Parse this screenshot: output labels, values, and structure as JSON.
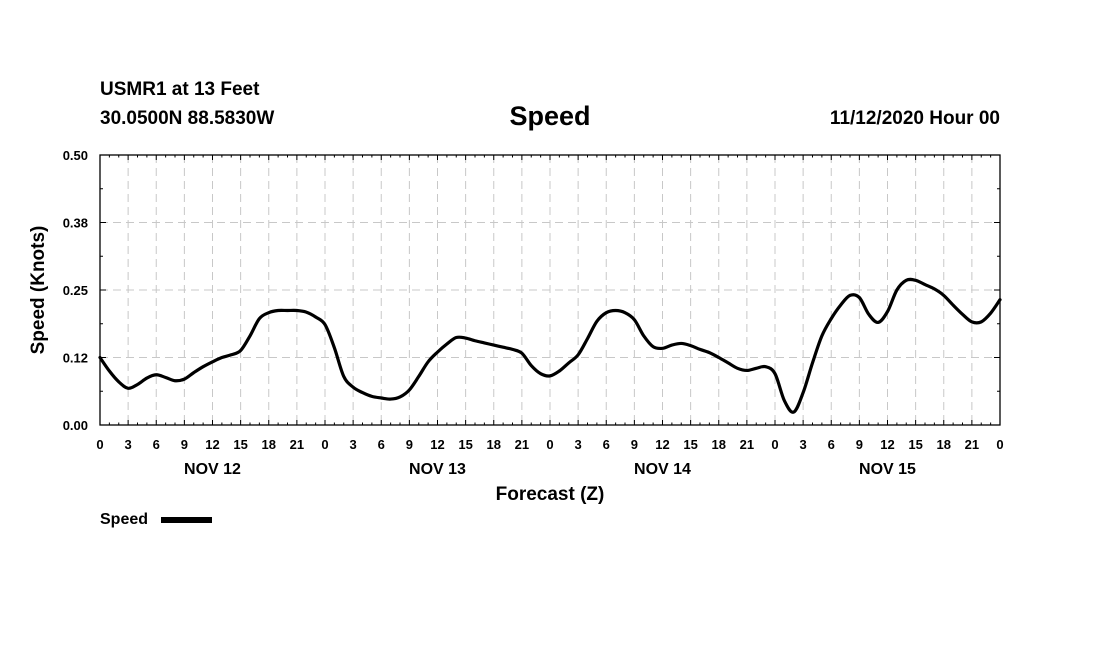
{
  "header": {
    "station": "USMR1 at 13 Feet",
    "coords": "30.0500N 88.5830W",
    "title": "Speed",
    "datetime": "11/12/2020 Hour 00"
  },
  "legend": {
    "label": "Speed"
  },
  "chart_data": {
    "type": "line",
    "title": "Speed",
    "xlabel": "Forecast (Z)",
    "ylabel": "Speed (Knots)",
    "ylim": [
      0,
      0.5
    ],
    "y_ticks": [
      "0.00",
      "0.12",
      "0.25",
      "0.38",
      "0.50"
    ],
    "y_tick_values": [
      0,
      0.125,
      0.25,
      0.375,
      0.5
    ],
    "x_unit": "hours since 11/12/2020 Hour 00",
    "xlim": [
      0,
      96
    ],
    "x_tick_hours": [
      0,
      3,
      6,
      9,
      12,
      15,
      18,
      21,
      24,
      27,
      30,
      33,
      36,
      39,
      42,
      45,
      48,
      51,
      54,
      57,
      60,
      63,
      66,
      69,
      72,
      75,
      78,
      81,
      84,
      87,
      90,
      93,
      96
    ],
    "x_tick_labels": [
      "0",
      "3",
      "6",
      "9",
      "12",
      "15",
      "18",
      "21",
      "0",
      "3",
      "6",
      "9",
      "12",
      "15",
      "18",
      "21",
      "0",
      "3",
      "6",
      "9",
      "12",
      "15",
      "18",
      "21",
      "0",
      "3",
      "6",
      "9",
      "12",
      "15",
      "18",
      "21",
      "0"
    ],
    "day_labels": [
      {
        "label": "NOV 12",
        "hour": 12
      },
      {
        "label": "NOV 13",
        "hour": 36
      },
      {
        "label": "NOV 14",
        "hour": 60
      },
      {
        "label": "NOV 15",
        "hour": 84
      }
    ],
    "grid": true,
    "legend_position": "bottom-left",
    "series": [
      {
        "name": "Speed",
        "color": "#000000",
        "points": [
          [
            0,
            0.125
          ],
          [
            1,
            0.1
          ],
          [
            2,
            0.08
          ],
          [
            3,
            0.068
          ],
          [
            4,
            0.075
          ],
          [
            5,
            0.087
          ],
          [
            6,
            0.093
          ],
          [
            7,
            0.088
          ],
          [
            8,
            0.082
          ],
          [
            9,
            0.085
          ],
          [
            10,
            0.097
          ],
          [
            11,
            0.108
          ],
          [
            12,
            0.117
          ],
          [
            13,
            0.125
          ],
          [
            14,
            0.13
          ],
          [
            15,
            0.138
          ],
          [
            16,
            0.165
          ],
          [
            17,
            0.197
          ],
          [
            18,
            0.208
          ],
          [
            19,
            0.212
          ],
          [
            20,
            0.212
          ],
          [
            21,
            0.212
          ],
          [
            22,
            0.209
          ],
          [
            23,
            0.2
          ],
          [
            24,
            0.186
          ],
          [
            25,
            0.143
          ],
          [
            26,
            0.09
          ],
          [
            27,
            0.07
          ],
          [
            28,
            0.06
          ],
          [
            29,
            0.053
          ],
          [
            30,
            0.05
          ],
          [
            31,
            0.048
          ],
          [
            32,
            0.052
          ],
          [
            33,
            0.065
          ],
          [
            34,
            0.09
          ],
          [
            35,
            0.117
          ],
          [
            36,
            0.135
          ],
          [
            37,
            0.15
          ],
          [
            38,
            0.162
          ],
          [
            39,
            0.161
          ],
          [
            40,
            0.156
          ],
          [
            41,
            0.152
          ],
          [
            42,
            0.148
          ],
          [
            43,
            0.144
          ],
          [
            44,
            0.14
          ],
          [
            45,
            0.133
          ],
          [
            46,
            0.11
          ],
          [
            47,
            0.095
          ],
          [
            48,
            0.091
          ],
          [
            49,
            0.1
          ],
          [
            50,
            0.115
          ],
          [
            51,
            0.13
          ],
          [
            52,
            0.16
          ],
          [
            53,
            0.192
          ],
          [
            54,
            0.208
          ],
          [
            55,
            0.212
          ],
          [
            56,
            0.208
          ],
          [
            57,
            0.195
          ],
          [
            58,
            0.165
          ],
          [
            59,
            0.145
          ],
          [
            60,
            0.142
          ],
          [
            61,
            0.148
          ],
          [
            62,
            0.151
          ],
          [
            63,
            0.147
          ],
          [
            64,
            0.14
          ],
          [
            65,
            0.134
          ],
          [
            66,
            0.125
          ],
          [
            67,
            0.115
          ],
          [
            68,
            0.105
          ],
          [
            69,
            0.101
          ],
          [
            70,
            0.105
          ],
          [
            71,
            0.108
          ],
          [
            72,
            0.095
          ],
          [
            73,
            0.045
          ],
          [
            74,
            0.024
          ],
          [
            75,
            0.06
          ],
          [
            76,
            0.115
          ],
          [
            77,
            0.165
          ],
          [
            78,
            0.197
          ],
          [
            79,
            0.222
          ],
          [
            80,
            0.24
          ],
          [
            81,
            0.236
          ],
          [
            82,
            0.205
          ],
          [
            83,
            0.19
          ],
          [
            84,
            0.21
          ],
          [
            85,
            0.25
          ],
          [
            86,
            0.268
          ],
          [
            87,
            0.268
          ],
          [
            88,
            0.26
          ],
          [
            89,
            0.252
          ],
          [
            90,
            0.24
          ],
          [
            91,
            0.222
          ],
          [
            92,
            0.205
          ],
          [
            93,
            0.191
          ],
          [
            94,
            0.191
          ],
          [
            95,
            0.207
          ],
          [
            96,
            0.232
          ]
        ]
      }
    ]
  }
}
